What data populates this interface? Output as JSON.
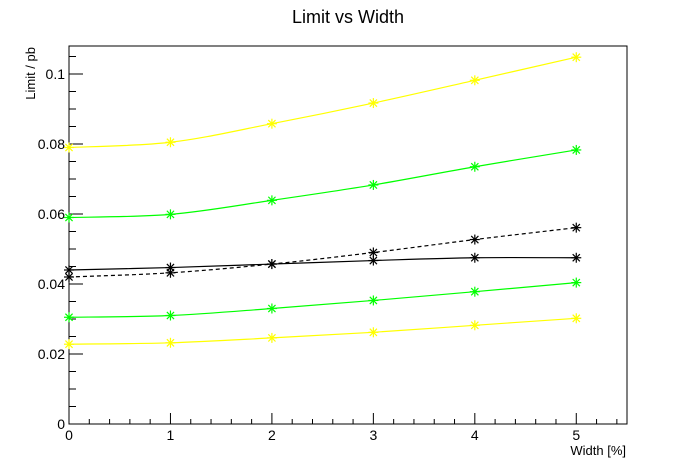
{
  "chart_data": {
    "type": "line",
    "title": "Limit vs Width",
    "xlabel": "Width [%]",
    "ylabel": "Limit / pb",
    "xlim": [
      0,
      5.5
    ],
    "ylim": [
      0,
      0.108
    ],
    "x_ticks": [
      0,
      1,
      2,
      3,
      4,
      5
    ],
    "x_tick_labels": [
      "0",
      "1",
      "2",
      "3",
      "4",
      "5"
    ],
    "y_ticks": [
      0,
      0.02,
      0.04,
      0.06,
      0.08,
      0.1
    ],
    "y_tick_labels": [
      "0",
      "0.02",
      "0.04",
      "0.06",
      "0.08",
      "0.1"
    ],
    "grid": false,
    "x": [
      0,
      1,
      2,
      3,
      4,
      5
    ],
    "series": [
      {
        "values": [
          0.079,
          0.0805,
          0.0858,
          0.0917,
          0.0982,
          0.1048
        ],
        "color": "#ffff00",
        "dash": "solid"
      },
      {
        "values": [
          0.059,
          0.0599,
          0.0639,
          0.0683,
          0.0735,
          0.0783
        ],
        "color": "#00ff00",
        "dash": "solid"
      },
      {
        "values": [
          0.042,
          0.0432,
          0.0457,
          0.049,
          0.0527,
          0.0561
        ],
        "color": "#000000",
        "dash": "dashed"
      },
      {
        "values": [
          0.044,
          0.0447,
          0.0457,
          0.0467,
          0.0475,
          0.0475
        ],
        "color": "#000000",
        "dash": "solid"
      },
      {
        "values": [
          0.0305,
          0.031,
          0.033,
          0.0353,
          0.0378,
          0.0404
        ],
        "color": "#00ff00",
        "dash": "solid"
      },
      {
        "values": [
          0.0228,
          0.0232,
          0.0246,
          0.0262,
          0.0282,
          0.0302
        ],
        "color": "#ffff00",
        "dash": "solid"
      }
    ]
  }
}
